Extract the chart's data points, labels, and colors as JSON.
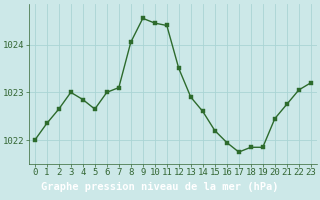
{
  "x": [
    0,
    1,
    2,
    3,
    4,
    5,
    6,
    7,
    8,
    9,
    10,
    11,
    12,
    13,
    14,
    15,
    16,
    17,
    18,
    19,
    20,
    21,
    22,
    23
  ],
  "y": [
    1022.0,
    1022.35,
    1022.65,
    1023.0,
    1022.85,
    1022.65,
    1023.0,
    1023.1,
    1024.05,
    1024.55,
    1024.45,
    1024.4,
    1023.5,
    1022.9,
    1022.6,
    1022.2,
    1021.95,
    1021.75,
    1021.85,
    1021.85,
    1022.45,
    1022.75,
    1023.05,
    1023.2
  ],
  "line_color": "#2d6b2d",
  "marker_color": "#2d6b2d",
  "bg_color": "#cce8e8",
  "grid_color": "#aad4d4",
  "footer_bg": "#336633",
  "footer_text": "Graphe pression niveau de la mer (hPa)",
  "footer_text_color": "#ffffff",
  "tick_color": "#336633",
  "tick_fontsize": 6.5,
  "footer_fontsize": 7.5,
  "ylim": [
    1021.5,
    1024.85
  ],
  "yticks": [
    1022,
    1023,
    1024
  ],
  "xticks": [
    0,
    1,
    2,
    3,
    4,
    5,
    6,
    7,
    8,
    9,
    10,
    11,
    12,
    13,
    14,
    15,
    16,
    17,
    18,
    19,
    20,
    21,
    22,
    23
  ],
  "marker_size": 2.5,
  "line_width": 1.0
}
